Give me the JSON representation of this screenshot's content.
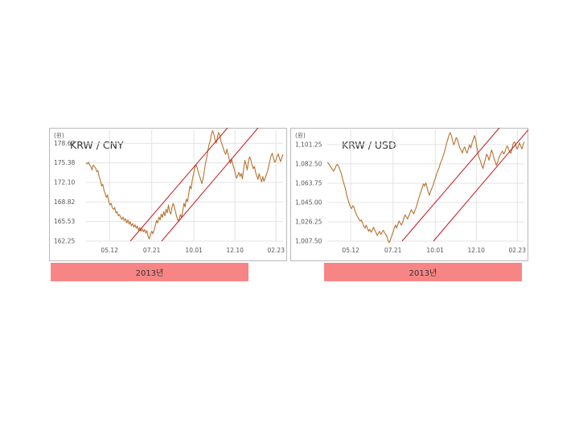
{
  "chart_data": [
    {
      "type": "line",
      "title": "KRW / CNY",
      "unit": "(원)",
      "caption": "2013년",
      "ylim": [
        162.25,
        181.0
      ],
      "y_ticks": [
        "178.67",
        "175.38",
        "172.10",
        "168.82",
        "165.53",
        "162.25"
      ],
      "y_tick_values": [
        178.67,
        175.38,
        172.1,
        168.82,
        165.53,
        162.25
      ],
      "x_ticks": [
        "05.12",
        "07.21",
        "10.01",
        "12.10",
        "02.23"
      ],
      "x_tick_positions": [
        20,
        56,
        92,
        127,
        162
      ],
      "x_range": [
        0,
        168
      ],
      "grid": true,
      "series": [
        {
          "values": [
            175.4,
            175.2,
            175.5,
            175.0,
            174.8,
            174.2,
            175.0,
            174.8,
            174.5,
            173.9,
            174.1,
            173.0,
            172.5,
            171.5,
            171.8,
            170.8,
            170.2,
            169.6,
            170.0,
            168.9,
            168.3,
            168.6,
            167.8,
            167.6,
            167.9,
            167.0,
            167.2,
            166.5,
            166.7,
            166.2,
            165.9,
            166.3,
            165.7,
            166.0,
            165.3,
            165.8,
            165.1,
            165.5,
            164.8,
            165.2,
            164.6,
            165.0,
            164.4,
            164.8,
            164.1,
            164.5,
            163.9,
            164.3,
            163.8,
            164.2,
            163.6,
            164.0,
            163.0,
            162.6,
            163.5,
            163.9,
            163.5,
            164.1,
            164.8,
            165.7,
            165.3,
            166.3,
            165.8,
            166.8,
            166.2,
            167.2,
            166.5,
            167.6,
            167.0,
            168.3,
            167.2,
            166.8,
            167.9,
            168.6,
            167.9,
            167.1,
            166.3,
            165.7,
            165.9,
            166.7,
            166.2,
            167.4,
            168.6,
            168.0,
            169.3,
            168.9,
            170.2,
            171.5,
            171.0,
            172.6,
            173.5,
            174.4,
            175.1,
            174.6,
            173.8,
            173.2,
            172.6,
            171.9,
            172.7,
            174.0,
            175.3,
            176.2,
            177.5,
            178.4,
            179.1,
            180.2,
            180.8,
            180.2,
            179.3,
            178.7,
            179.6,
            180.5,
            180.1,
            179.0,
            178.4,
            177.8,
            177.2,
            176.8,
            177.7,
            176.8,
            175.9,
            175.3,
            176.0,
            175.1,
            174.4,
            173.6,
            172.8,
            173.3,
            173.8,
            173.1,
            173.6,
            172.7,
            174.5,
            175.8,
            175.1,
            174.2,
            175.6,
            176.4,
            175.9,
            175.0,
            174.4,
            174.8,
            173.8,
            173.2,
            172.6,
            173.6,
            172.8,
            172.2,
            173.1,
            172.3,
            172.8,
            173.4,
            174.0,
            174.9,
            175.8,
            176.6,
            177.0,
            176.2,
            175.5,
            175.8,
            176.5,
            176.9,
            176.1,
            175.6,
            176.3,
            176.8
          ]
        }
      ],
      "trend_lines": [
        [
          [
            0,
            53
          ],
          [
            0.6,
            54
          ],
          [
            0.9,
            178
          ],
          [
            -1.7,
            236
          ]
        ],
        [
          [
            0.6,
            54
          ],
          [
            -2.8,
            200
          ]
        ]
      ],
      "line_color": "#b5732e",
      "trend_color": "#c8141e"
    },
    {
      "type": "line",
      "title": "KRW / USD",
      "unit": "(원)",
      "caption": "2013년",
      "ylim": [
        1007.5,
        1116.0
      ],
      "y_ticks": [
        "1,101.25",
        "1,082.50",
        "1,063.75",
        "1,045.00",
        "1,026.25",
        "1,007.50"
      ],
      "y_tick_values": [
        1101.25,
        1082.5,
        1063.75,
        1045.0,
        1026.25,
        1007.5
      ],
      "x_ticks": [
        "05.12",
        "07.21",
        "10.01",
        "12.10",
        "02.23"
      ],
      "x_tick_positions": [
        20,
        56,
        92,
        127,
        162
      ],
      "x_range": [
        0,
        168
      ],
      "grid": true,
      "series": [
        {
          "values": [
            1084.0,
            1083.0,
            1081.0,
            1079.5,
            1077.5,
            1075.5,
            1077.0,
            1080.0,
            1082.0,
            1081.0,
            1078.0,
            1075.0,
            1071.0,
            1066.0,
            1062.0,
            1058.0,
            1052.0,
            1048.0,
            1044.0,
            1041.0,
            1039.0,
            1042.0,
            1040.0,
            1036.0,
            1033.0,
            1031.0,
            1029.0,
            1027.0,
            1028.0,
            1025.0,
            1022.0,
            1020.0,
            1023.0,
            1020.0,
            1017.0,
            1019.0,
            1016.0,
            1018.0,
            1021.0,
            1018.0,
            1016.0,
            1013.0,
            1015.0,
            1017.0,
            1014.0,
            1016.0,
            1018.0,
            1016.0,
            1014.0,
            1012.0,
            1008.0,
            1006.0,
            1009.0,
            1013.0,
            1016.0,
            1020.0,
            1023.0,
            1020.0,
            1024.0,
            1027.0,
            1025.0,
            1023.0,
            1026.0,
            1030.0,
            1033.0,
            1031.0,
            1029.0,
            1032.0,
            1035.0,
            1038.0,
            1036.0,
            1034.0,
            1037.0,
            1040.0,
            1044.0,
            1048.0,
            1052.0,
            1056.0,
            1059.0,
            1063.0,
            1061.0,
            1064.0,
            1060.0,
            1055.0,
            1052.0,
            1056.0,
            1059.0,
            1062.0,
            1066.0,
            1069.0,
            1073.0,
            1076.0,
            1079.0,
            1083.0,
            1086.0,
            1089.0,
            1093.0,
            1097.0,
            1102.0,
            1106.0,
            1110.0,
            1113.0,
            1110.0,
            1105.0,
            1101.0,
            1104.0,
            1108.0,
            1106.0,
            1102.0,
            1098.0,
            1096.0,
            1093.0,
            1097.0,
            1099.0,
            1095.0,
            1093.0,
            1097.0,
            1101.0,
            1098.0,
            1103.0,
            1106.0,
            1110.0,
            1106.0,
            1099.0,
            1092.0,
            1088.0,
            1085.0,
            1081.0,
            1078.0,
            1083.0,
            1087.0,
            1092.0,
            1090.0,
            1086.0,
            1091.0,
            1096.0,
            1093.0,
            1088.0,
            1085.0,
            1081.0,
            1084.0,
            1088.0,
            1091.0,
            1093.0,
            1095.0,
            1092.0,
            1094.0,
            1098.0,
            1100.0,
            1097.0,
            1094.0,
            1093.0,
            1098.0,
            1103.0,
            1104.0,
            1100.0,
            1097.0,
            1099.0,
            1103.0,
            1100.0,
            1097.0,
            1101.0,
            1104.0
          ]
        }
      ],
      "trend_lines": [
        [
          [
            0,
            53
          ],
          [
            0.5,
            54
          ],
          [
            0.9,
            178
          ],
          [
            -1.9,
            236
          ]
        ],
        [
          [
            0.5,
            54
          ],
          [
            -3.0,
            200
          ]
        ]
      ],
      "line_color": "#b5732e",
      "trend_color": "#c8141e"
    }
  ]
}
